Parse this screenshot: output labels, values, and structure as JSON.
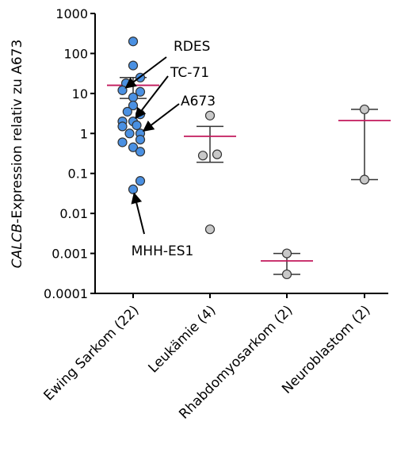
{
  "chart_data": {
    "type": "scatter",
    "ylabel_italic": "CALCB",
    "ylabel_rest": "-Expression relativ zu A673",
    "yscale": "log",
    "ylim": [
      0.0001,
      1000
    ],
    "yticks": [
      {
        "value": 0.0001,
        "label": "0.0001"
      },
      {
        "value": 0.001,
        "label": "0.001"
      },
      {
        "value": 0.01,
        "label": "0.01"
      },
      {
        "value": 0.1,
        "label": "0.1"
      },
      {
        "value": 1,
        "label": "1"
      },
      {
        "value": 10,
        "label": "10"
      },
      {
        "value": 100,
        "label": "100"
      },
      {
        "value": 1000,
        "label": "1000"
      }
    ],
    "categories": [
      "Ewing Sarkom (22)",
      "Leukämie (4)",
      "Rhabdomyosarkom (2)",
      "Neuroblastom (2)"
    ],
    "series": [
      {
        "category": "Ewing Sarkom (22)",
        "color": "#4a90e2",
        "mean": 16,
        "error": [
          7.5,
          25
        ],
        "points": [
          {
            "jitter": 0,
            "y": 200
          },
          {
            "jitter": 0,
            "y": 50
          },
          {
            "jitter": 1,
            "y": 25
          },
          {
            "jitter": -1,
            "y": 18
          },
          {
            "jitter": -1.5,
            "y": 12
          },
          {
            "jitter": 1,
            "y": 11
          },
          {
            "jitter": 0,
            "y": 8
          },
          {
            "jitter": 0,
            "y": 5
          },
          {
            "jitter": -0.8,
            "y": 3.5
          },
          {
            "jitter": 1,
            "y": 3
          },
          {
            "jitter": -1.5,
            "y": 2
          },
          {
            "jitter": 0,
            "y": 2
          },
          {
            "jitter": 0.5,
            "y": 1.6
          },
          {
            "jitter": -1.5,
            "y": 1.5
          },
          {
            "jitter": 1,
            "y": 1
          },
          {
            "jitter": -0.5,
            "y": 1
          },
          {
            "jitter": 1,
            "y": 0.7
          },
          {
            "jitter": -1.5,
            "y": 0.6
          },
          {
            "jitter": 0,
            "y": 0.45
          },
          {
            "jitter": 1,
            "y": 0.35
          },
          {
            "jitter": 1,
            "y": 0.065
          },
          {
            "jitter": 0,
            "y": 0.04
          }
        ]
      },
      {
        "category": "Leukämie (4)",
        "color": "#c8c8c8",
        "mean": 0.85,
        "error": [
          0.19,
          1.5
        ],
        "points": [
          {
            "jitter": 0,
            "y": 2.8
          },
          {
            "jitter": -1,
            "y": 0.28
          },
          {
            "jitter": 1,
            "y": 0.3
          },
          {
            "jitter": 0,
            "y": 0.004
          }
        ]
      },
      {
        "category": "Rhabdomyosarkom (2)",
        "color": "#c8c8c8",
        "mean": 0.00065,
        "error": [
          0.0003,
          0.001
        ],
        "points": [
          {
            "jitter": 0,
            "y": 0.001
          },
          {
            "jitter": 0,
            "y": 0.0003
          }
        ]
      },
      {
        "category": "Neuroblastom (2)",
        "color": "#c8c8c8",
        "mean": 2.1,
        "error": [
          0.07,
          4
        ],
        "points": [
          {
            "jitter": 0,
            "y": 4
          },
          {
            "jitter": 0,
            "y": 0.07
          }
        ]
      }
    ],
    "mean_line_color": "#c2185b",
    "annotations": [
      {
        "label": "RDES",
        "target_y": 12,
        "target_jitter": -1.5
      },
      {
        "label": "TC-71",
        "target_y": 2,
        "target_jitter": 0
      },
      {
        "label": "A673",
        "target_y": 1,
        "target_jitter": 1
      },
      {
        "label": "MHH-ES1",
        "target_y": 0.04,
        "target_jitter": 0
      }
    ]
  }
}
